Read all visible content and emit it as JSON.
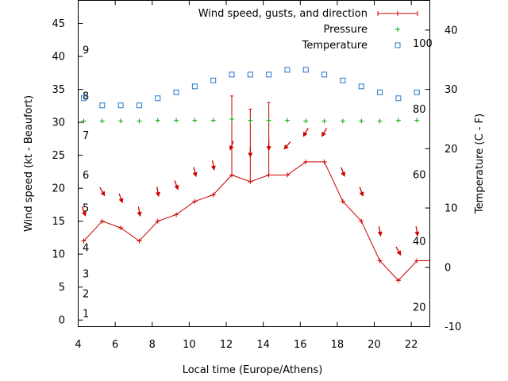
{
  "chart_data": {
    "type": "line",
    "xlabel": "Local time (Europe/Athens)",
    "ylabel": "Wind speed (kt - Beaufort)",
    "y2label": "Temperature (C - F)",
    "xlim": [
      4,
      23
    ],
    "xticks": [
      4,
      6,
      8,
      10,
      12,
      14,
      16,
      18,
      20,
      22
    ],
    "ylim": [
      -1,
      48.5
    ],
    "yticks": [
      0,
      5,
      10,
      15,
      20,
      25,
      30,
      35,
      40,
      45
    ],
    "y2lim": [
      -10,
      45
    ],
    "y2ticks": [
      -10,
      0,
      10,
      20,
      30,
      40
    ],
    "beaufort_labels": [
      {
        "label": "1",
        "kt": 1
      },
      {
        "label": "2",
        "kt": 4
      },
      {
        "label": "3",
        "kt": 7
      },
      {
        "label": "4",
        "kt": 11
      },
      {
        "label": "5",
        "kt": 17
      },
      {
        "label": "6",
        "kt": 22
      },
      {
        "label": "7",
        "kt": 28
      },
      {
        "label": "8",
        "kt": 34
      },
      {
        "label": "9",
        "kt": 41
      }
    ],
    "fahrenheit_labels": [
      {
        "label": "20",
        "celsius": -6.7
      },
      {
        "label": "40",
        "celsius": 4.4
      },
      {
        "label": "60",
        "celsius": 15.6
      },
      {
        "label": "80",
        "celsius": 26.7
      },
      {
        "label": "100",
        "celsius": 37.8
      }
    ],
    "legend": "top-right",
    "series": [
      {
        "name": "Wind speed, gusts, and direction",
        "color": "#cc0000",
        "x": [
          4.3,
          5.3,
          6.3,
          7.3,
          8.3,
          9.3,
          10.3,
          11.3,
          12.3,
          13.3,
          14.3,
          15.3,
          16.3,
          17.3,
          18.3,
          19.3,
          20.3,
          21.3,
          22.3,
          23
        ],
        "y": [
          12,
          15,
          14,
          12,
          15,
          16,
          18,
          19,
          22,
          21,
          22,
          22,
          24,
          24,
          18,
          15,
          9,
          6,
          9,
          9
        ],
        "gusts": [
          null,
          null,
          null,
          null,
          null,
          null,
          null,
          null,
          34,
          32,
          33,
          null,
          null,
          null,
          null,
          null,
          null,
          null,
          null,
          null
        ],
        "direction_deg": [
          340,
          330,
          340,
          350,
          350,
          340,
          345,
          350,
          20,
          0,
          0,
          40,
          30,
          30,
          340,
          340,
          350,
          330,
          350,
          null
        ]
      },
      {
        "name": "Pressure",
        "color": "#00aa00",
        "x": [
          4.3,
          5.3,
          6.3,
          7.3,
          8.3,
          9.3,
          10.3,
          11.3,
          12.3,
          13.3,
          14.3,
          15.3,
          16.3,
          17.3,
          18.3,
          19.3,
          20.3,
          21.3,
          22.3
        ],
        "y": [
          30.2,
          30.2,
          30.2,
          30.2,
          30.3,
          30.3,
          30.3,
          30.3,
          30.5,
          30.3,
          30.3,
          30.3,
          30.2,
          30.2,
          30.2,
          30.2,
          30.2,
          30.3,
          30.3
        ]
      },
      {
        "name": "Temperature",
        "color": "#2277cc",
        "axis": "y2",
        "x": [
          4.3,
          5.3,
          6.3,
          7.3,
          8.3,
          9.3,
          10.3,
          11.3,
          12.3,
          13.3,
          14.3,
          15.3,
          16.3,
          17.3,
          18.3,
          19.3,
          20.3,
          21.3,
          22.3
        ],
        "y": [
          28.5,
          27.3,
          27.3,
          27.3,
          28.5,
          29.5,
          30.5,
          31.5,
          32.5,
          32.5,
          32.5,
          33.3,
          33.3,
          32.5,
          31.5,
          30.5,
          29.5,
          28.5,
          29.5
        ]
      }
    ]
  }
}
